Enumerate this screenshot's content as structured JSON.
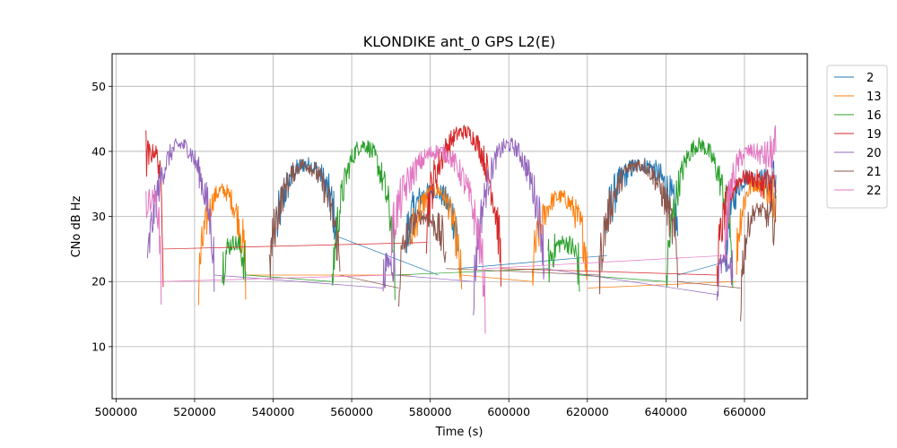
{
  "chart_data": {
    "type": "line",
    "title": "KLONDIKE ant_0 GPS L2(E)",
    "xlabel": "Time (s)",
    "ylabel": "CNo dB Hz",
    "xlim": [
      499000,
      676000
    ],
    "ylim": [
      2,
      55
    ],
    "xticks": [
      500000,
      520000,
      540000,
      560000,
      580000,
      600000,
      620000,
      640000,
      660000
    ],
    "yticks": [
      10,
      20,
      30,
      40,
      50
    ],
    "grid": true,
    "legend_position": "outside-right",
    "series": [
      {
        "name": "2",
        "color": "#1f77b4",
        "arcs": [
          [
            541000,
            556000,
            38,
            27,
            27
          ],
          [
            574000,
            587000,
            34,
            26,
            26
          ],
          [
            625000,
            643000,
            38,
            28,
            27
          ],
          [
            655000,
            668000,
            36,
            22,
            36
          ]
        ],
        "links": [
          [
            556000,
            27,
            582000,
            21
          ],
          [
            587000,
            22,
            625000,
            24
          ],
          [
            643000,
            21,
            655000,
            23
          ]
        ]
      },
      {
        "name": "13",
        "color": "#ff7f0e",
        "arcs": [
          [
            521000,
            533000,
            34,
            18,
            21
          ],
          [
            575000,
            588000,
            34,
            25,
            17
          ],
          [
            606000,
            620000,
            33,
            20,
            22
          ],
          [
            658000,
            668000,
            35,
            23,
            33
          ]
        ],
        "links": [
          [
            533000,
            21,
            575000,
            21
          ],
          [
            588000,
            21,
            606000,
            20
          ],
          [
            620000,
            19,
            658000,
            20
          ]
        ]
      },
      {
        "name": "16",
        "color": "#2ca02c",
        "arcs": [
          [
            527000,
            533000,
            26,
            21,
            21
          ],
          [
            555000,
            571000,
            41,
            17,
            21
          ],
          [
            610000,
            618000,
            26,
            22,
            21
          ],
          [
            640000,
            657000,
            41,
            17,
            22
          ]
        ],
        "links": [
          [
            533000,
            21,
            555000,
            20
          ],
          [
            571000,
            21,
            610000,
            22
          ],
          [
            618000,
            21,
            640000,
            20
          ]
        ]
      },
      {
        "name": "19",
        "color": "#d62728",
        "arcs": [
          [
            507500,
            512000,
            40,
            40,
            23
          ],
          [
            579000,
            598000,
            43,
            28,
            21
          ],
          [
            653000,
            668000,
            36,
            20,
            35
          ]
        ],
        "links": [
          [
            512000,
            25,
            579000,
            26
          ],
          [
            598000,
            22,
            653000,
            21
          ]
        ]
      },
      {
        "name": "20",
        "color": "#9467bd",
        "arcs": [
          [
            508000,
            525000,
            41,
            20,
            21
          ],
          [
            568000,
            571000,
            23,
            19,
            22
          ],
          [
            591000,
            609000,
            41,
            16,
            22
          ],
          [
            653000,
            657000,
            23,
            18,
            22
          ]
        ],
        "links": [
          [
            525000,
            21,
            568000,
            19
          ],
          [
            571000,
            21,
            591000,
            20
          ],
          [
            609000,
            22,
            653000,
            18
          ]
        ]
      },
      {
        "name": "21",
        "color": "#8c564b",
        "arcs": [
          [
            539000,
            557000,
            38,
            20,
            21
          ],
          [
            572000,
            584000,
            30,
            19,
            24
          ],
          [
            623000,
            643000,
            38,
            20,
            21
          ],
          [
            659000,
            668000,
            31,
            16,
            29
          ]
        ],
        "links": [
          [
            557000,
            21,
            572000,
            19
          ],
          [
            584000,
            22,
            623000,
            21
          ],
          [
            643000,
            20,
            659000,
            19
          ]
        ]
      },
      {
        "name": "22",
        "color": "#e377c2",
        "arcs": [
          [
            507500,
            511500,
            33,
            33,
            19
          ],
          [
            570000,
            594000,
            40,
            25,
            16
          ],
          [
            655000,
            668000,
            40,
            24,
            40
          ]
        ],
        "links": [
          [
            511500,
            20,
            570000,
            21
          ],
          [
            594000,
            22,
            655000,
            24
          ]
        ]
      }
    ]
  }
}
